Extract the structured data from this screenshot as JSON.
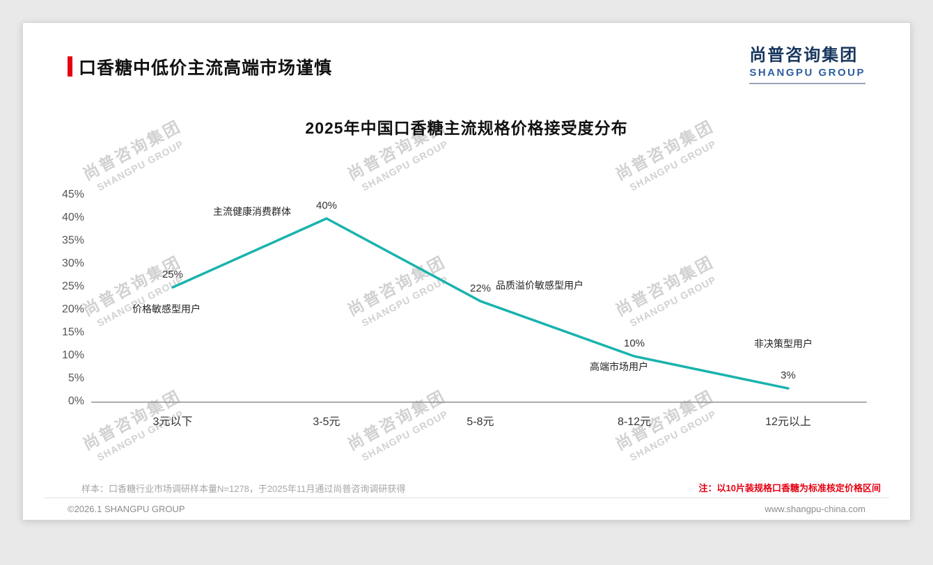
{
  "page": {
    "title": "口香糖中低价主流高端市场谨慎",
    "logo": {
      "cn": "尚普咨询集团",
      "en": "SHANGPU GROUP"
    },
    "watermark": {
      "line1": "尚普咨询集团",
      "line2": "SHANGPU GROUP"
    },
    "sample_note": "样本：口香糖行业市场调研样本量N=1278，于2025年11月通过尚普咨询调研获得",
    "red_note": "注：以10片装规格口香糖为标准核定价格区间",
    "footer": {
      "left": "©2026.1 SHANGPU GROUP",
      "right": "www.shangpu-china.com"
    },
    "colors": {
      "accent_red": "#e60012",
      "brand_navy": "#17365d",
      "brand_blue": "#2e5e9e"
    }
  },
  "chart_data": {
    "type": "line",
    "title": "2025年中国口香糖主流规格价格接受度分布",
    "categories": [
      "3元以下",
      "3-5元",
      "5-8元",
      "8-12元",
      "12元以上"
    ],
    "values": [
      25,
      40,
      22,
      10,
      3
    ],
    "data_labels": [
      "25%",
      "40%",
      "22%",
      "10%",
      "3%"
    ],
    "annotations": [
      "价格敏感型用户",
      "主流健康消费群体",
      "品质溢价敏感型用户",
      "高端市场用户",
      "非决策型用户"
    ],
    "y_ticks": [
      "45%",
      "40%",
      "35%",
      "30%",
      "25%",
      "20%",
      "15%",
      "10%",
      "5%",
      "0%"
    ],
    "ylim": [
      0,
      45
    ],
    "xlabel": "",
    "ylabel": "",
    "grid": false,
    "legend": "none",
    "line_color": "#1ab3ad"
  }
}
